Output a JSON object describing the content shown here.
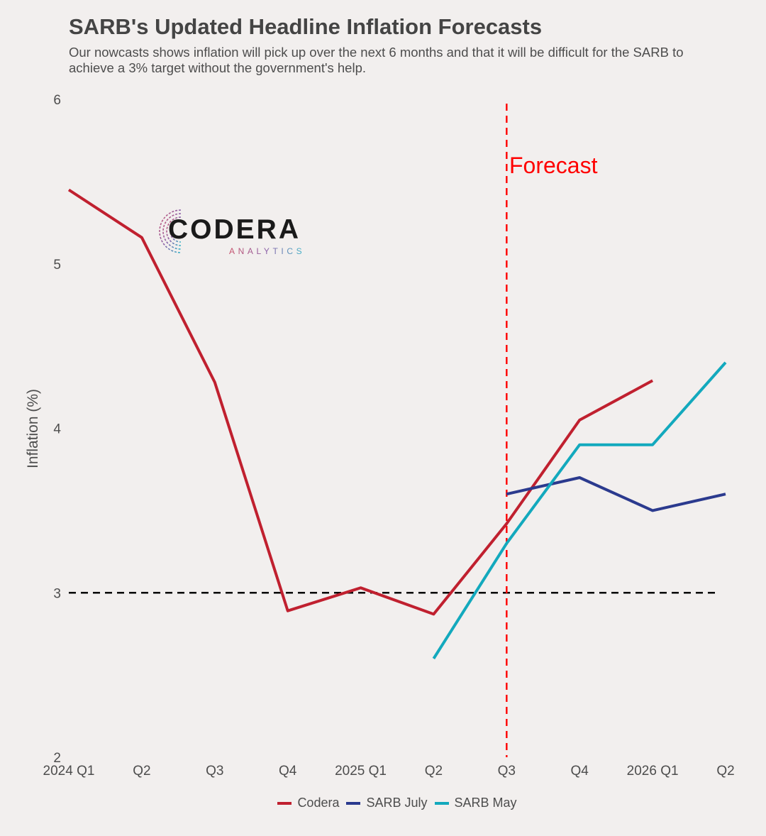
{
  "title": "SARB's Updated Headline Inflation Forecasts",
  "subtitle": "Our nowcasts shows inflation will pick up over the next 6 months and that it will be difficult for the SARB to achieve a 3% target without the government's help.",
  "logo": {
    "word": "CODERA",
    "sub": "ANALYTICS"
  },
  "chart_data": {
    "type": "line",
    "title": "SARB's Updated Headline Inflation Forecasts",
    "subtitle": "Our nowcasts shows inflation will pick up over the next 6 months and that it will be difficult for the SARB to achieve a 3% target without the government's help.",
    "xlabel": "",
    "ylabel": "Inflation (%)",
    "categories": [
      "2024 Q1",
      "Q2",
      "Q3",
      "Q4",
      "2025 Q1",
      "Q2",
      "Q3",
      "Q4",
      "2026 Q1",
      "Q2"
    ],
    "ylim": [
      2,
      6
    ],
    "yticks": [
      2,
      3,
      4,
      5,
      6
    ],
    "grid": false,
    "legend_position": "bottom",
    "series": [
      {
        "name": "Codera",
        "color": "#c0202f",
        "values": [
          5.45,
          5.16,
          4.28,
          2.89,
          3.03,
          2.87,
          3.42,
          4.05,
          4.29,
          null
        ]
      },
      {
        "name": "SARB July",
        "color": "#2b3a8e",
        "values": [
          null,
          null,
          null,
          null,
          null,
          null,
          3.6,
          3.7,
          3.5,
          3.6
        ]
      },
      {
        "name": "SARB May",
        "color": "#13a9bd",
        "values": [
          null,
          null,
          null,
          null,
          null,
          2.6,
          3.3,
          3.9,
          3.9,
          4.4
        ]
      }
    ],
    "reference_lines": [
      {
        "axis": "y",
        "value": 3,
        "style": "dashed",
        "color": "#000000"
      },
      {
        "axis": "x",
        "category": "Q3",
        "category_index": 6,
        "style": "dashed",
        "color": "#ff0000"
      }
    ],
    "annotations": [
      {
        "text": "Forecast",
        "color": "#ff0000"
      }
    ]
  }
}
